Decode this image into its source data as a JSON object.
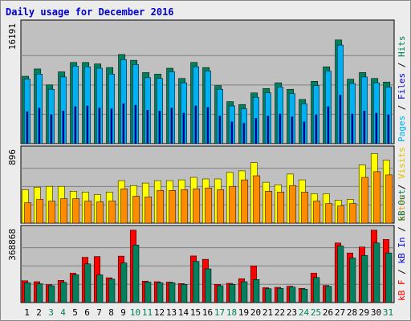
{
  "title": "Daily usage for December 2016",
  "colors": {
    "background": "#ececec",
    "panel": "#c0c0c0",
    "title": "#0000cc",
    "hits": "#00805c",
    "files": "#00b0f0",
    "pages": "#0000d0",
    "visits": "#ffff00",
    "sites": "#ff8c00",
    "kbf": "#ff0000",
    "kbin": "#008060",
    "kbout": "#00805c",
    "weekend_label": "#00805c",
    "weekday_label": "#000000"
  },
  "chart_data": [
    {
      "type": "bar",
      "panel": "hits-files-pages",
      "y_max_label": "16191",
      "ylim": [
        0,
        16191
      ],
      "categories": [
        "1",
        "2",
        "3",
        "4",
        "5",
        "6",
        "7",
        "8",
        "9",
        "10",
        "11",
        "12",
        "13",
        "14",
        "15",
        "16",
        "17",
        "18",
        "19",
        "20",
        "21",
        "22",
        "23",
        "24",
        "25",
        "26",
        "27",
        "28",
        "29",
        "30",
        "31"
      ],
      "series": [
        {
          "name": "Hits",
          "values": [
            9300,
            10300,
            8100,
            9900,
            11200,
            11200,
            11000,
            10500,
            12300,
            11500,
            9800,
            9600,
            10400,
            9000,
            11200,
            10500,
            8000,
            5800,
            5400,
            7000,
            7600,
            8400,
            7500,
            6100,
            8600,
            10600,
            14300,
            8900,
            9800,
            9000,
            8500
          ]
        },
        {
          "name": "Files",
          "values": [
            8900,
            9600,
            7500,
            9200,
            10700,
            10600,
            10400,
            9600,
            11600,
            10900,
            9100,
            9000,
            9900,
            8400,
            10600,
            10000,
            7500,
            5200,
            4800,
            6400,
            7000,
            7800,
            6900,
            5500,
            8000,
            10000,
            13600,
            8300,
            9200,
            8400,
            7800
          ]
        },
        {
          "name": "Pages",
          "values": [
            4400,
            4900,
            4000,
            4500,
            5100,
            5200,
            4900,
            4800,
            5500,
            5300,
            4600,
            4500,
            4900,
            4200,
            5200,
            5000,
            3800,
            3000,
            2800,
            3500,
            3800,
            4100,
            3700,
            3000,
            4000,
            5100,
            6700,
            4100,
            4500,
            4200,
            4000
          ]
        }
      ]
    },
    {
      "type": "bar",
      "panel": "visits-sites",
      "y_max_label": "896",
      "ylim": [
        0,
        896
      ],
      "categories": [
        "1",
        "2",
        "3",
        "4",
        "5",
        "6",
        "7",
        "8",
        "9",
        "10",
        "11",
        "12",
        "13",
        "14",
        "15",
        "16",
        "17",
        "18",
        "19",
        "20",
        "21",
        "22",
        "23",
        "24",
        "25",
        "26",
        "27",
        "28",
        "29",
        "30",
        "31"
      ],
      "series": [
        {
          "name": "Visits",
          "values": [
            410,
            440,
            450,
            450,
            390,
            380,
            350,
            380,
            520,
            460,
            490,
            520,
            520,
            530,
            560,
            540,
            540,
            620,
            640,
            740,
            500,
            470,
            600,
            530,
            360,
            360,
            280,
            290,
            710,
            850,
            770
          ]
        },
        {
          "name": "Sites",
          "values": [
            250,
            290,
            270,
            300,
            300,
            270,
            260,
            270,
            420,
            330,
            320,
            400,
            400,
            410,
            420,
            430,
            410,
            450,
            530,
            580,
            390,
            380,
            460,
            380,
            270,
            240,
            210,
            240,
            560,
            630,
            590
          ]
        }
      ]
    },
    {
      "type": "bar",
      "panel": "kbf-kbin-kbout",
      "y_max_label": "368868",
      "ylim": [
        0,
        368868
      ],
      "categories": [
        "1",
        "2",
        "3",
        "4",
        "5",
        "6",
        "7",
        "8",
        "9",
        "10",
        "11",
        "12",
        "13",
        "14",
        "15",
        "16",
        "17",
        "18",
        "19",
        "20",
        "21",
        "22",
        "23",
        "24",
        "25",
        "26",
        "27",
        "28",
        "29",
        "30",
        "31"
      ],
      "series": [
        {
          "name": "KB F",
          "values": [
            110000,
            105000,
            90000,
            112000,
            148000,
            228000,
            232000,
            125000,
            234000,
            365000,
            108000,
            105000,
            103000,
            96000,
            235000,
            218000,
            92000,
            97000,
            120000,
            185000,
            75000,
            77000,
            82000,
            72000,
            148000,
            86000,
            300000,
            250000,
            280000,
            365000,
            318000
          ]
        },
        {
          "name": "KB Out",
          "values": [
            100000,
            95000,
            85000,
            102000,
            140000,
            195000,
            140000,
            118000,
            200000,
            290000,
            103000,
            100000,
            100000,
            92000,
            208000,
            170000,
            85000,
            92000,
            105000,
            116000,
            70000,
            72000,
            78000,
            68000,
            126000,
            82000,
            285000,
            225000,
            238000,
            300000,
            250000
          ]
        }
      ]
    }
  ],
  "days": [
    "1",
    "2",
    "3",
    "4",
    "5",
    "6",
    "7",
    "8",
    "9",
    "10",
    "11",
    "12",
    "13",
    "14",
    "15",
    "16",
    "17",
    "18",
    "19",
    "20",
    "21",
    "22",
    "23",
    "24",
    "25",
    "26",
    "27",
    "28",
    "29",
    "30",
    "31"
  ],
  "weekends": [
    3,
    4,
    10,
    11,
    17,
    18,
    24,
    25,
    31
  ],
  "side_labels": {
    "panel1": [
      {
        "text": "Pages",
        "color": "#00b0f0"
      },
      {
        "text": " / ",
        "color": "#000000"
      },
      {
        "text": "Files",
        "color": "#0000d0"
      },
      {
        "text": " / ",
        "color": "#000000"
      },
      {
        "text": "Hits",
        "color": "#00805c"
      }
    ],
    "panel2": [
      {
        "text": "Sites",
        "color": "#ff8c00"
      },
      {
        "text": " / ",
        "color": "#000000"
      },
      {
        "text": "Visits",
        "color": "#e0c000"
      }
    ],
    "panel3": [
      {
        "text": "kB F",
        "color": "#ff0000"
      },
      {
        "text": " / ",
        "color": "#000000"
      },
      {
        "text": "kB In",
        "color": "#0000d0"
      },
      {
        "text": " / ",
        "color": "#000000"
      },
      {
        "text": "kB Out",
        "color": "#00805c"
      }
    ]
  }
}
